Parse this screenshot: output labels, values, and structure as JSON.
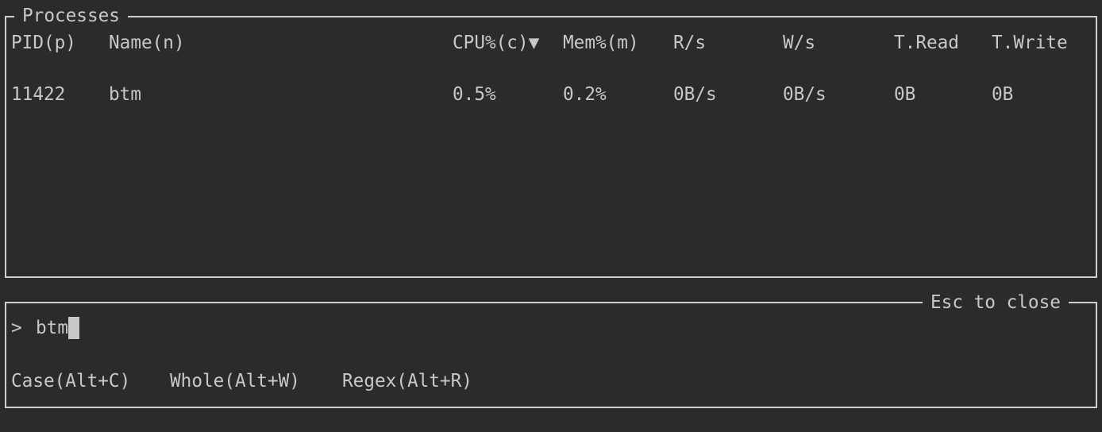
{
  "processes": {
    "title": "Processes",
    "columns": [
      {
        "label": "PID(p)"
      },
      {
        "label": "Name(n)"
      },
      {
        "label": "CPU%(c)▼"
      },
      {
        "label": "Mem%(m)"
      },
      {
        "label": "R/s"
      },
      {
        "label": "W/s"
      },
      {
        "label": "T.Read"
      },
      {
        "label": "T.Write"
      }
    ],
    "rows": [
      {
        "pid": "11422",
        "name": "btm",
        "cpu": "0.5%",
        "mem": "0.2%",
        "rps": "0B/s",
        "wps": "0B/s",
        "tread": "0B",
        "twrite": "0B"
      }
    ],
    "sort_column": "CPU%",
    "sort_direction": "descending"
  },
  "search": {
    "close_hint": "Esc to close",
    "prompt": ">",
    "query": "btm",
    "options": [
      "Case(Alt+C)",
      "Whole(Alt+W)",
      "Regex(Alt+R)"
    ]
  },
  "colors": {
    "background": "#2b2b2b",
    "text": "#c8c8c8",
    "border": "#cfcfcf"
  }
}
